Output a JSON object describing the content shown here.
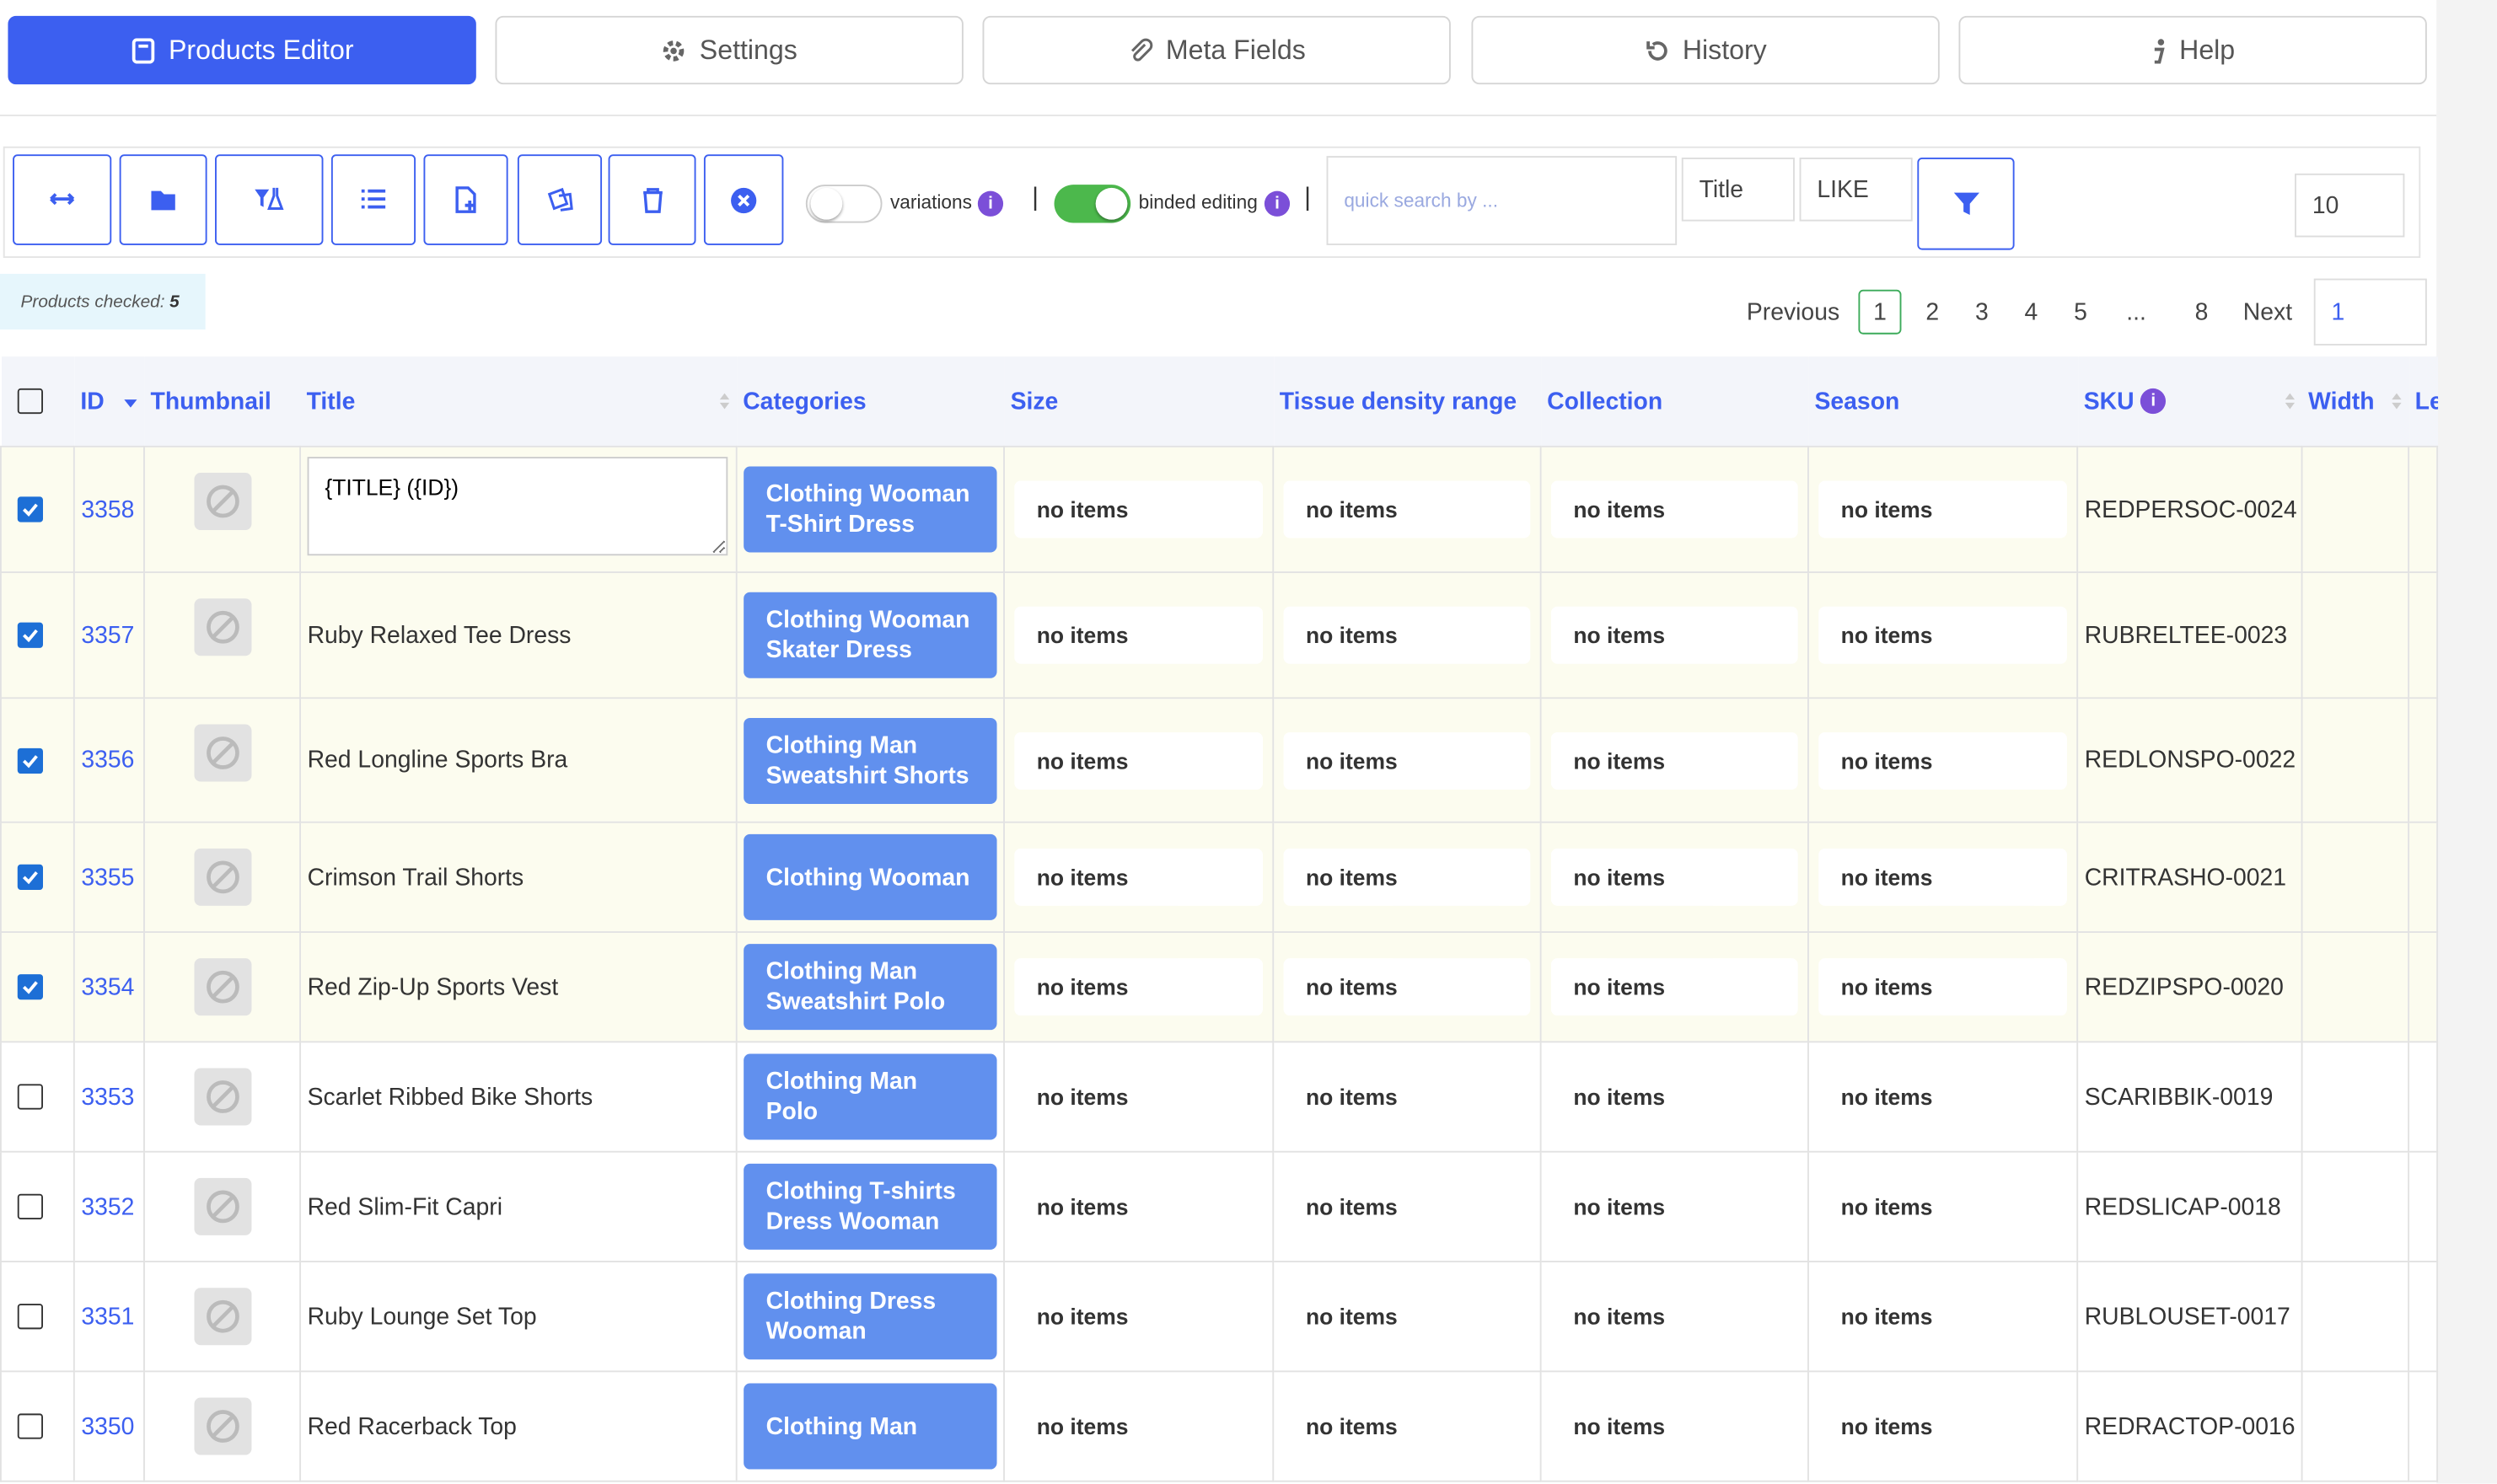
{
  "tabs": [
    "Products Editor",
    "Settings",
    "Meta Fields",
    "History",
    "Help"
  ],
  "toolbar": {
    "variations": "variations",
    "binded_editing": "binded editing",
    "search_placeholder": "quick search by ...",
    "search_field": "Title",
    "search_operator": "LIKE",
    "per_page": "10"
  },
  "checked": {
    "label": "Products checked:",
    "count": "5"
  },
  "pagination": {
    "previous": "Previous",
    "pages": [
      "1",
      "2",
      "3",
      "4",
      "5",
      "...",
      "8"
    ],
    "next": "Next",
    "goto": "1"
  },
  "table": {
    "headers": [
      "ID",
      "Thumbnail",
      "Title",
      "Categories",
      "Size",
      "Tissue density range",
      "Collection",
      "Season",
      "SKU",
      "Width",
      "Le"
    ],
    "rows": [
      {
        "checked": true,
        "id": "3358",
        "title": "{TITLE} ({ID})",
        "categories": "Clothing Wooman T-Shirt Dress",
        "size": "no items",
        "tissue": "no items",
        "collection": "no items",
        "season": "no items",
        "sku": "REDPERSOC-0024"
      },
      {
        "checked": true,
        "id": "3357",
        "title": "Ruby Relaxed Tee Dress",
        "categories": "Clothing Wooman Skater Dress",
        "size": "no items",
        "tissue": "no items",
        "collection": "no items",
        "season": "no items",
        "sku": "RUBRELTEE-0023"
      },
      {
        "checked": true,
        "id": "3356",
        "title": "Red Longline Sports Bra",
        "categories": "Clothing Man Sweatshirt Shorts",
        "size": "no items",
        "tissue": "no items",
        "collection": "no items",
        "season": "no items",
        "sku": "REDLONSPO-0022"
      },
      {
        "checked": true,
        "id": "3355",
        "title": "Crimson Trail Shorts",
        "categories": "Clothing Wooman",
        "size": "no items",
        "tissue": "no items",
        "collection": "no items",
        "season": "no items",
        "sku": "CRITRASHO-0021"
      },
      {
        "checked": true,
        "id": "3354",
        "title": "Red Zip-Up Sports Vest",
        "categories": "Clothing Man Sweatshirt Polo",
        "size": "no items",
        "tissue": "no items",
        "collection": "no items",
        "season": "no items",
        "sku": "REDZIPSPO-0020"
      },
      {
        "checked": false,
        "id": "3353",
        "title": "Scarlet Ribbed Bike Shorts",
        "categories": "Clothing Man Polo",
        "size": "no items",
        "tissue": "no items",
        "collection": "no items",
        "season": "no items",
        "sku": "SCARIBBIK-0019"
      },
      {
        "checked": false,
        "id": "3352",
        "title": "Red Slim-Fit Capri",
        "categories": "Clothing T-shirts Dress Wooman",
        "size": "no items",
        "tissue": "no items",
        "collection": "no items",
        "season": "no items",
        "sku": "REDSLICAP-0018"
      },
      {
        "checked": false,
        "id": "3351",
        "title": "Ruby Lounge Set Top",
        "categories": "Clothing Dress Wooman",
        "size": "no items",
        "tissue": "no items",
        "collection": "no items",
        "season": "no items",
        "sku": "RUBLOUSET-0017"
      },
      {
        "checked": false,
        "id": "3350",
        "title": "Red Racerback Top",
        "categories": "Clothing Man",
        "size": "no items",
        "tissue": "no items",
        "collection": "no items",
        "season": "no items",
        "sku": "REDRACTOP-0016"
      }
    ]
  }
}
